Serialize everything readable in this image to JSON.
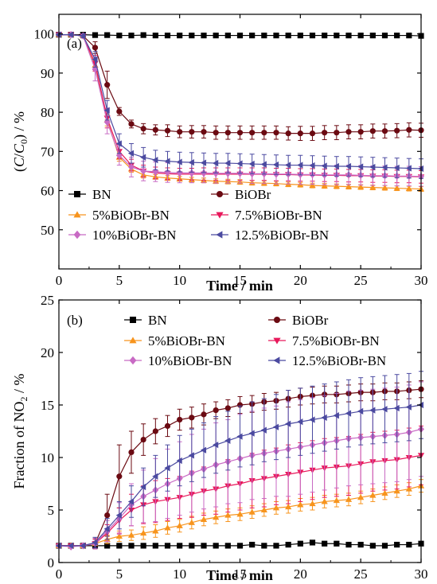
{
  "chart_data": [
    {
      "type": "line",
      "panel_label": "(a)",
      "title": "",
      "xlabel": "Time / min",
      "ylabel": "(C/C0) / %",
      "ylabel_parts": [
        "(",
        "C",
        "/",
        "C",
        "0",
        ") / %"
      ],
      "xlim": [
        0,
        30
      ],
      "ylim": [
        40,
        105
      ],
      "xticks": [
        0,
        5,
        10,
        15,
        20,
        25,
        30
      ],
      "yticks": [
        50,
        60,
        70,
        80,
        90,
        100
      ],
      "grid": false,
      "legend_position": "bottom",
      "x": [
        0,
        1,
        2,
        3,
        4,
        5,
        6,
        7,
        8,
        9,
        10,
        11,
        12,
        13,
        14,
        15,
        16,
        17,
        18,
        19,
        20,
        21,
        22,
        23,
        24,
        25,
        26,
        27,
        28,
        29,
        30
      ],
      "series": [
        {
          "name": "BN",
          "color": "#000000",
          "marker": "square",
          "values": [
            99.8,
            99.8,
            99.8,
            99.7,
            99.7,
            99.6,
            99.6,
            99.7,
            99.6,
            99.6,
            99.6,
            99.6,
            99.6,
            99.6,
            99.6,
            99.6,
            99.6,
            99.6,
            99.6,
            99.6,
            99.6,
            99.6,
            99.6,
            99.6,
            99.6,
            99.6,
            99.6,
            99.6,
            99.6,
            99.6,
            99.5
          ],
          "errors": [
            0.2,
            0.2,
            0.2,
            0.2,
            0.2,
            0.2,
            0.2,
            0.2,
            0.2,
            0.2,
            0.2,
            0.2,
            0.2,
            0.2,
            0.2,
            0.2,
            0.2,
            0.2,
            0.2,
            0.2,
            0.2,
            0.2,
            0.2,
            0.2,
            0.2,
            0.2,
            0.2,
            0.2,
            0.2,
            0.2,
            0.2
          ]
        },
        {
          "name": "BiOBr",
          "color": "#6b0a12",
          "marker": "circle",
          "values": [
            99.8,
            99.8,
            99.5,
            96.5,
            87,
            80.2,
            77,
            75.8,
            75.5,
            75.3,
            75,
            75,
            75,
            74.8,
            74.8,
            74.8,
            74.8,
            74.8,
            74.8,
            74.6,
            74.6,
            74.6,
            74.8,
            74.8,
            75,
            75,
            75.2,
            75.2,
            75.3,
            75.5,
            75.4
          ],
          "errors": [
            0.3,
            0.3,
            0.5,
            1.5,
            3.5,
            1,
            1,
            1.3,
            1.3,
            1.5,
            1.5,
            1.6,
            1.6,
            1.7,
            1.7,
            1.7,
            1.7,
            1.7,
            1.7,
            1.7,
            1.8,
            1.8,
            1.8,
            1.8,
            1.8,
            1.8,
            1.8,
            1.8,
            1.8,
            1.8,
            1.8
          ]
        },
        {
          "name": "5%BiOBr-BN",
          "color": "#f7941d",
          "marker": "triangle-up",
          "values": [
            99.8,
            99.8,
            99.5,
            92,
            78,
            68.5,
            65.5,
            64,
            63.5,
            63.2,
            63,
            62.8,
            62.6,
            62.4,
            62.3,
            62.2,
            62,
            61.9,
            61.8,
            61.6,
            61.5,
            61.3,
            61.2,
            61.1,
            61,
            60.9,
            60.8,
            60.7,
            60.6,
            60.5,
            60.4
          ],
          "errors": [
            0.3,
            0.3,
            0.5,
            1.5,
            1.5,
            1,
            0.8,
            0.8,
            0.6,
            0.6,
            0.6,
            0.6,
            0.6,
            0.6,
            0.6,
            0.6,
            0.6,
            0.6,
            0.6,
            0.6,
            0.6,
            0.6,
            0.6,
            0.6,
            0.6,
            0.6,
            0.6,
            0.6,
            0.6,
            0.6,
            0.6
          ]
        },
        {
          "name": "7.5%BiOBr-BN",
          "color": "#e8185b",
          "marker": "triangle-down",
          "values": [
            99.8,
            99.8,
            99.5,
            92.5,
            78.5,
            70,
            66.5,
            65,
            64.5,
            64.3,
            64.2,
            64.2,
            64.2,
            64.2,
            64.2,
            64.2,
            64.2,
            64.2,
            64.1,
            64.1,
            64,
            64,
            63.9,
            63.9,
            63.8,
            63.8,
            63.7,
            63.7,
            63.6,
            63.6,
            63.5
          ],
          "errors": [
            0.3,
            0.3,
            0.5,
            2,
            2.5,
            1.8,
            1.5,
            1.5,
            1.5,
            1.5,
            1.5,
            1.5,
            1.6,
            1.6,
            1.6,
            1.6,
            1.6,
            1.6,
            1.6,
            1.6,
            1.6,
            1.6,
            1.6,
            1.6,
            1.6,
            1.6,
            1.6,
            1.6,
            1.6,
            1.6,
            1.6
          ]
        },
        {
          "name": "10%BiOBr-BN",
          "color": "#c86ac4",
          "marker": "diamond",
          "values": [
            99.8,
            99.8,
            99.5,
            91,
            77.5,
            69,
            66,
            65,
            64.8,
            64.6,
            64.5,
            64.5,
            64.5,
            64.4,
            64.4,
            64.4,
            64.3,
            64.3,
            64.2,
            64.2,
            64.1,
            64.1,
            64,
            64,
            64,
            63.9,
            63.8,
            63.8,
            63.7,
            63.7,
            63.6
          ],
          "errors": [
            0.3,
            0.3,
            0.5,
            3,
            3,
            2.5,
            2.5,
            2.5,
            2.5,
            2.5,
            2.5,
            2.5,
            2.5,
            2.5,
            2.5,
            2.5,
            2.5,
            2.5,
            2.5,
            2.5,
            2.5,
            2.5,
            2.5,
            2.5,
            2.5,
            2.5,
            2.5,
            2.5,
            2.5,
            2.5,
            2.5
          ]
        },
        {
          "name": "12.5%BiOBr-BN",
          "color": "#4b4aa0",
          "marker": "triangle-left",
          "values": [
            99.8,
            99.8,
            99.5,
            93.5,
            80.5,
            72,
            69.5,
            68.5,
            67.8,
            67.5,
            67.3,
            67.2,
            67.1,
            67,
            67,
            66.9,
            66.8,
            66.7,
            66.6,
            66.5,
            66.5,
            66.4,
            66.3,
            66.2,
            66.2,
            66.1,
            66,
            65.9,
            65.8,
            65.7,
            65.6
          ],
          "errors": [
            0.3,
            0.3,
            0.5,
            2,
            2.5,
            2.5,
            2.5,
            2.5,
            2.5,
            2.5,
            2.5,
            2.5,
            2.5,
            2.5,
            2.5,
            2.5,
            2.5,
            2.5,
            2.5,
            2.5,
            2.5,
            2.5,
            2.5,
            2.5,
            2.5,
            2.5,
            2.5,
            2.5,
            2.5,
            2.5,
            2.5
          ]
        }
      ]
    },
    {
      "type": "line",
      "panel_label": "(b)",
      "title": "",
      "xlabel": "Time / min",
      "ylabel": "Fraction of NO2 / %",
      "ylabel_parts": [
        "Fraction of NO",
        "2",
        " / %"
      ],
      "xlim": [
        0,
        30
      ],
      "ylim": [
        0,
        25
      ],
      "xticks": [
        0,
        5,
        10,
        15,
        20,
        25,
        30
      ],
      "yticks": [
        0,
        5,
        10,
        15,
        20,
        25
      ],
      "grid": false,
      "legend_position": "top",
      "x": [
        0,
        1,
        2,
        3,
        4,
        5,
        6,
        7,
        8,
        9,
        10,
        11,
        12,
        13,
        14,
        15,
        16,
        17,
        18,
        19,
        20,
        21,
        22,
        23,
        24,
        25,
        26,
        27,
        28,
        29,
        30
      ],
      "series": [
        {
          "name": "BN",
          "color": "#000000",
          "marker": "square",
          "values": [
            1.6,
            1.6,
            1.6,
            1.6,
            1.6,
            1.6,
            1.6,
            1.6,
            1.6,
            1.6,
            1.6,
            1.6,
            1.6,
            1.6,
            1.6,
            1.6,
            1.7,
            1.6,
            1.6,
            1.7,
            1.8,
            1.9,
            1.8,
            1.8,
            1.7,
            1.7,
            1.6,
            1.6,
            1.7,
            1.7,
            1.8
          ],
          "errors": [
            0.2,
            0.2,
            0.2,
            0.2,
            0.2,
            0.2,
            0.2,
            0.2,
            0.2,
            0.2,
            0.2,
            0.2,
            0.2,
            0.2,
            0.2,
            0.2,
            0.2,
            0.2,
            0.2,
            0.2,
            0.2,
            0.2,
            0.2,
            0.2,
            0.2,
            0.2,
            0.2,
            0.2,
            0.2,
            0.2,
            0.2
          ]
        },
        {
          "name": "BiOBr",
          "color": "#6b0a12",
          "marker": "circle",
          "values": [
            1.6,
            1.6,
            1.6,
            1.8,
            4.5,
            8.2,
            10.5,
            11.7,
            12.5,
            13,
            13.6,
            13.8,
            14.1,
            14.5,
            14.7,
            15,
            15.1,
            15.3,
            15.4,
            15.6,
            15.8,
            15.9,
            16,
            16,
            16.1,
            16.2,
            16.2,
            16.3,
            16.3,
            16.4,
            16.5
          ],
          "errors": [
            0.2,
            0.2,
            0.2,
            0.5,
            2,
            3,
            2,
            1.5,
            1.2,
            1,
            1,
            1,
            1,
            0.8,
            0.8,
            0.8,
            0.8,
            0.8,
            0.8,
            0.8,
            0.8,
            0.8,
            0.8,
            0.8,
            0.8,
            0.8,
            0.8,
            0.8,
            0.8,
            0.8,
            0.8
          ]
        },
        {
          "name": "5%BiOBr-BN",
          "color": "#f7941d",
          "marker": "triangle-up",
          "values": [
            1.6,
            1.6,
            1.6,
            1.8,
            2.2,
            2.5,
            2.6,
            2.8,
            3.0,
            3.3,
            3.5,
            3.8,
            4.1,
            4.3,
            4.5,
            4.6,
            4.8,
            5.0,
            5.2,
            5.3,
            5.5,
            5.6,
            5.8,
            5.9,
            6.0,
            6.2,
            6.4,
            6.6,
            6.8,
            7.0,
            7.3
          ],
          "errors": [
            0.2,
            0.2,
            0.2,
            0.2,
            0.4,
            0.5,
            0.5,
            0.6,
            0.6,
            0.6,
            0.6,
            0.6,
            0.6,
            0.6,
            0.6,
            0.6,
            0.6,
            0.6,
            0.6,
            0.6,
            0.6,
            0.6,
            0.6,
            0.6,
            0.6,
            0.6,
            0.6,
            0.6,
            0.6,
            0.6,
            0.6
          ]
        },
        {
          "name": "7.5%BiOBr-BN",
          "color": "#e8185b",
          "marker": "triangle-down",
          "values": [
            1.6,
            1.6,
            1.6,
            1.8,
            2.8,
            4.0,
            5.0,
            5.5,
            5.8,
            6.0,
            6.2,
            6.5,
            6.8,
            7.0,
            7.3,
            7.5,
            7.8,
            8.0,
            8.2,
            8.4,
            8.6,
            8.8,
            9.0,
            9.1,
            9.2,
            9.4,
            9.6,
            9.7,
            9.8,
            10.0,
            10.2
          ],
          "errors": [
            0.2,
            0.2,
            0.2,
            0.4,
            0.8,
            1.2,
            1.5,
            1.8,
            2,
            2,
            2,
            2.2,
            2.3,
            2.4,
            2.5,
            2.5,
            2.6,
            2.7,
            2.7,
            2.8,
            2.8,
            2.8,
            2.8,
            2.8,
            2.8,
            2.8,
            2.8,
            2.8,
            2.8,
            2.8,
            2.8
          ]
        },
        {
          "name": "10%BiOBr-BN",
          "color": "#c86ac4",
          "marker": "diamond",
          "values": [
            1.6,
            1.5,
            1.6,
            1.8,
            3.0,
            4.2,
            5.5,
            6.3,
            6.9,
            7.5,
            8.0,
            8.5,
            8.9,
            9.3,
            9.6,
            9.9,
            10.2,
            10.4,
            10.6,
            10.8,
            11.0,
            11.2,
            11.4,
            11.6,
            11.8,
            11.9,
            12.0,
            12.1,
            12.2,
            12.4,
            12.7
          ],
          "errors": [
            0.2,
            0.2,
            0.2,
            0.5,
            1,
            1.5,
            2,
            2.5,
            3,
            3.3,
            3.5,
            3.7,
            3.8,
            4,
            4,
            4.2,
            4.2,
            4.3,
            4.3,
            4.5,
            4.5,
            4.5,
            4.5,
            4.5,
            4.5,
            4.5,
            4.5,
            4.5,
            4.5,
            4.5,
            4.5
          ]
        },
        {
          "name": "12.5%BiOBr-BN",
          "color": "#4b4aa0",
          "marker": "triangle-left",
          "values": [
            1.6,
            1.6,
            1.6,
            1.9,
            3.2,
            4.5,
            5.8,
            7.2,
            8.2,
            9.0,
            9.7,
            10.2,
            10.7,
            11.2,
            11.6,
            12.0,
            12.3,
            12.6,
            12.9,
            13.2,
            13.4,
            13.6,
            13.8,
            14.0,
            14.2,
            14.4,
            14.5,
            14.6,
            14.7,
            14.8,
            15.0
          ],
          "errors": [
            0.2,
            0.2,
            0.2,
            0.5,
            1,
            1.3,
            1.5,
            1.8,
            2,
            2.2,
            2.4,
            2.5,
            2.6,
            2.7,
            2.8,
            2.9,
            3,
            3,
            3.1,
            3.2,
            3.2,
            3.2,
            3.2,
            3.2,
            3.2,
            3.2,
            3.2,
            3.2,
            3.2,
            3.2,
            3.2
          ]
        }
      ]
    }
  ]
}
